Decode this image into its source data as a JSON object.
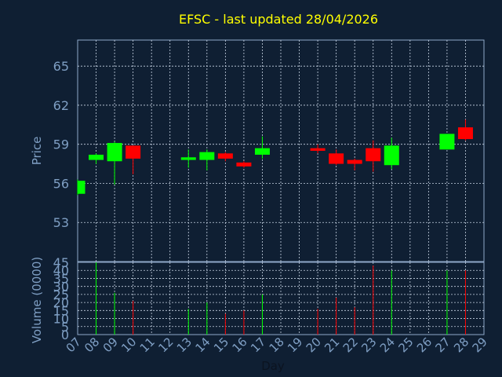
{
  "title": "EFSC - last updated 28/04/2026",
  "colors": {
    "background": "#0f1f33",
    "frame": "#8fa8c8",
    "grid": "#c8d4e4",
    "title": "#ffff00",
    "axis_text": "#7f9fc4",
    "xlabel_text": "#0b1320",
    "up": "#00ff00",
    "down": "#ff0000"
  },
  "chart_data": [
    {
      "type": "candlestick",
      "name": "price",
      "ylabel": "Price",
      "ylim": [
        50,
        67
      ],
      "yticks": [
        53,
        56,
        59,
        62,
        65
      ],
      "grid": true,
      "xlim": [
        7,
        29
      ],
      "candles": [
        {
          "day": 7,
          "open": 55.2,
          "high": 56.3,
          "low": 55.1,
          "close": 56.2
        },
        {
          "day": 8,
          "open": 57.8,
          "high": 58.3,
          "low": 57.5,
          "close": 58.2
        },
        {
          "day": 9,
          "open": 57.7,
          "high": 59.2,
          "low": 55.9,
          "close": 59.1
        },
        {
          "day": 10,
          "open": 58.9,
          "high": 58.9,
          "low": 56.7,
          "close": 57.9
        },
        {
          "day": 13,
          "open": 57.8,
          "high": 58.6,
          "low": 57.2,
          "close": 58.0
        },
        {
          "day": 14,
          "open": 57.8,
          "high": 58.6,
          "low": 57.0,
          "close": 58.4
        },
        {
          "day": 15,
          "open": 58.3,
          "high": 58.4,
          "low": 57.7,
          "close": 57.9
        },
        {
          "day": 16,
          "open": 57.6,
          "high": 57.7,
          "low": 57.2,
          "close": 57.3
        },
        {
          "day": 17,
          "open": 58.2,
          "high": 59.6,
          "low": 57.9,
          "close": 58.7
        },
        {
          "day": 20,
          "open": 58.7,
          "high": 59.0,
          "low": 58.3,
          "close": 58.5
        },
        {
          "day": 21,
          "open": 58.3,
          "high": 58.6,
          "low": 57.4,
          "close": 57.5
        },
        {
          "day": 22,
          "open": 57.8,
          "high": 57.9,
          "low": 57.0,
          "close": 57.5
        },
        {
          "day": 23,
          "open": 58.7,
          "high": 59.3,
          "low": 56.9,
          "close": 57.7
        },
        {
          "day": 24,
          "open": 57.4,
          "high": 59.5,
          "low": 57.1,
          "close": 58.9
        },
        {
          "day": 27,
          "open": 58.6,
          "high": 59.8,
          "low": 58.6,
          "close": 59.8
        },
        {
          "day": 28,
          "open": 60.3,
          "high": 60.9,
          "low": 59.3,
          "close": 59.4
        }
      ]
    },
    {
      "type": "bar",
      "name": "volume",
      "ylabel": "Volume (0000)",
      "xlabel": "Day",
      "ylim": [
        0,
        45
      ],
      "yticks": [
        0,
        5,
        10,
        15,
        20,
        25,
        30,
        35,
        40,
        45
      ],
      "xlim": [
        7,
        29
      ],
      "xticks": [
        "07",
        "08",
        "09",
        "10",
        "11",
        "12",
        "13",
        "14",
        "15",
        "16",
        "17",
        "18",
        "19",
        "20",
        "21",
        "22",
        "23",
        "24",
        "25",
        "26",
        "27",
        "28",
        "29"
      ],
      "bars": [
        {
          "day": 8,
          "value": 45,
          "dir": "up"
        },
        {
          "day": 9,
          "value": 26,
          "dir": "up"
        },
        {
          "day": 10,
          "value": 21,
          "dir": "down"
        },
        {
          "day": 13,
          "value": 16,
          "dir": "up"
        },
        {
          "day": 14,
          "value": 20,
          "dir": "up"
        },
        {
          "day": 15,
          "value": 13,
          "dir": "down"
        },
        {
          "day": 16,
          "value": 15,
          "dir": "down"
        },
        {
          "day": 17,
          "value": 25,
          "dir": "up"
        },
        {
          "day": 20,
          "value": 16,
          "dir": "down"
        },
        {
          "day": 21,
          "value": 23,
          "dir": "down"
        },
        {
          "day": 22,
          "value": 17,
          "dir": "down"
        },
        {
          "day": 23,
          "value": 43,
          "dir": "down"
        },
        {
          "day": 24,
          "value": 40,
          "dir": "up"
        },
        {
          "day": 27,
          "value": 40,
          "dir": "up"
        },
        {
          "day": 28,
          "value": 40,
          "dir": "down"
        }
      ]
    }
  ]
}
